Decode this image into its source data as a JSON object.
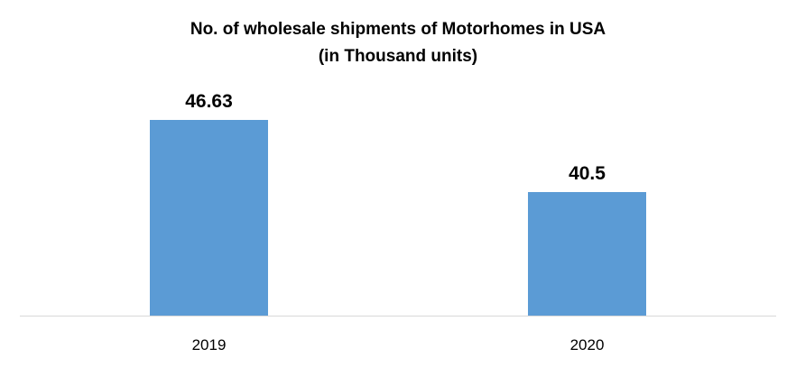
{
  "chart_data": {
    "type": "bar",
    "title_line1": "No. of wholesale shipments of Motorhomes in USA",
    "title_line2": "(in Thousand units)",
    "categories": [
      "2019",
      "2020"
    ],
    "values": [
      46.63,
      40.5
    ],
    "value_labels": [
      "46.63",
      "40.5"
    ],
    "xlabel": "",
    "ylabel": "",
    "ylim": [
      30,
      50
    ],
    "grid": false,
    "legend": "none",
    "bar_color": "#5b9bd5",
    "axis_color": "#d9d9d9"
  }
}
